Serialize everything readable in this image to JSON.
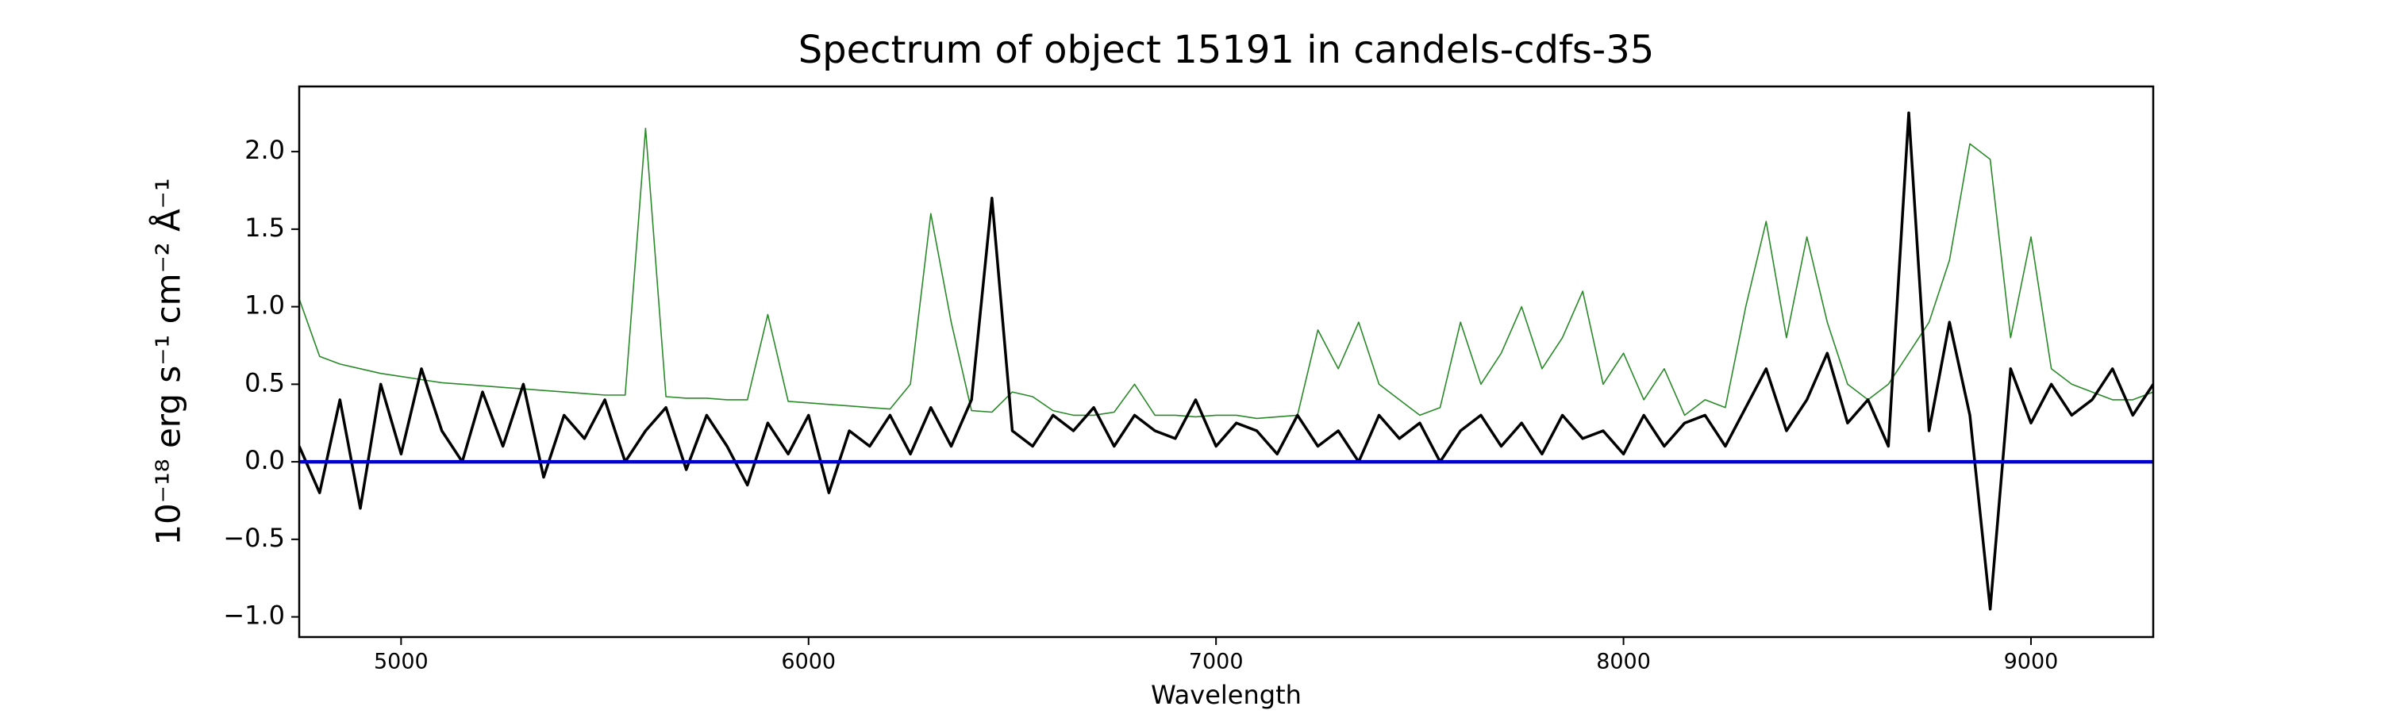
{
  "chart_data": {
    "type": "line",
    "title": "Spectrum of object 15191 in candels-cdfs-35",
    "x_label": "Wavelength",
    "y_label": "10⁻¹⁸ erg s⁻¹ cm⁻² Å⁻¹",
    "xlim": [
      4750,
      9300
    ],
    "ylim": [
      -1.13,
      2.42
    ],
    "xticks": [
      5000,
      6000,
      7000,
      8000,
      9000
    ],
    "yticks": [
      {
        "value": -1,
        "label": "−1.0"
      },
      {
        "value": -0.5,
        "label": "−0.5"
      },
      {
        "value": 0,
        "label": "0.0"
      },
      {
        "value": 0.5,
        "label": "0.5"
      },
      {
        "value": 1,
        "label": "1.0"
      },
      {
        "value": 1.5,
        "label": "1.5"
      },
      {
        "value": 2,
        "label": "2.0"
      }
    ],
    "grid": false,
    "x": [
      4750,
      4800,
      4850,
      4900,
      4950,
      5000,
      5050,
      5100,
      5150,
      5200,
      5250,
      5300,
      5350,
      5400,
      5450,
      5500,
      5550,
      5600,
      5650,
      5700,
      5750,
      5800,
      5850,
      5900,
      5950,
      6000,
      6050,
      6100,
      6150,
      6200,
      6250,
      6300,
      6350,
      6400,
      6450,
      6500,
      6550,
      6600,
      6650,
      6700,
      6750,
      6800,
      6850,
      6900,
      6950,
      7000,
      7050,
      7100,
      7150,
      7200,
      7250,
      7300,
      7350,
      7400,
      7450,
      7500,
      7550,
      7600,
      7650,
      7700,
      7750,
      7800,
      7850,
      7900,
      7950,
      8000,
      8050,
      8100,
      8150,
      8200,
      8250,
      8300,
      8350,
      8400,
      8450,
      8500,
      8550,
      8600,
      8650,
      8700,
      8750,
      8800,
      8850,
      8900,
      8950,
      9000,
      9050,
      9100,
      9150,
      9200,
      9250,
      9300
    ],
    "series": [
      {
        "color": "#2a8a2a",
        "width": 1.6,
        "values": [
          1.05,
          0.68,
          0.63,
          0.6,
          0.57,
          0.55,
          0.53,
          0.51,
          0.5,
          0.49,
          0.48,
          0.47,
          0.46,
          0.45,
          0.44,
          0.43,
          0.43,
          2.15,
          0.42,
          0.41,
          0.41,
          0.4,
          0.4,
          0.95,
          0.39,
          0.38,
          0.37,
          0.36,
          0.35,
          0.34,
          0.5,
          1.6,
          0.9,
          0.33,
          0.32,
          0.45,
          0.42,
          0.33,
          0.3,
          0.3,
          0.32,
          0.5,
          0.3,
          0.3,
          0.29,
          0.3,
          0.3,
          0.28,
          0.29,
          0.3,
          0.85,
          0.6,
          0.9,
          0.5,
          0.4,
          0.3,
          0.35,
          0.9,
          0.5,
          0.7,
          1.0,
          0.6,
          0.8,
          1.1,
          0.5,
          0.7,
          0.4,
          0.6,
          0.3,
          0.4,
          0.35,
          1.0,
          1.55,
          0.8,
          1.45,
          0.9,
          0.5,
          0.4,
          0.5,
          0.7,
          0.9,
          1.3,
          2.05,
          1.95,
          0.8,
          1.45,
          0.6,
          0.5,
          0.45,
          0.4,
          0.4,
          0.45
        ]
      },
      {
        "color": "#000000",
        "width": 3.5,
        "values": [
          0.1,
          -0.2,
          0.4,
          -0.3,
          0.5,
          0.05,
          0.6,
          0.2,
          0.0,
          0.45,
          0.1,
          0.5,
          -0.1,
          0.3,
          0.15,
          0.4,
          0.0,
          0.2,
          0.35,
          -0.05,
          0.3,
          0.1,
          -0.15,
          0.25,
          0.05,
          0.3,
          -0.2,
          0.2,
          0.1,
          0.3,
          0.05,
          0.35,
          0.1,
          0.4,
          1.7,
          0.2,
          0.1,
          0.3,
          0.2,
          0.35,
          0.1,
          0.3,
          0.2,
          0.15,
          0.4,
          0.1,
          0.25,
          0.2,
          0.05,
          0.3,
          0.1,
          0.2,
          0.0,
          0.3,
          0.15,
          0.25,
          0.0,
          0.2,
          0.3,
          0.1,
          0.25,
          0.05,
          0.3,
          0.15,
          0.2,
          0.05,
          0.3,
          0.1,
          0.25,
          0.3,
          0.1,
          0.35,
          0.6,
          0.2,
          0.4,
          0.7,
          0.25,
          0.4,
          0.1,
          2.25,
          0.2,
          0.9,
          0.3,
          -0.95,
          0.6,
          0.25,
          0.5,
          0.3,
          0.4,
          0.6,
          0.3,
          0.5
        ]
      },
      {
        "color": "#0000cc",
        "width": 4.5,
        "x": [
          4750,
          9300
        ],
        "values": [
          0,
          0
        ]
      }
    ]
  }
}
